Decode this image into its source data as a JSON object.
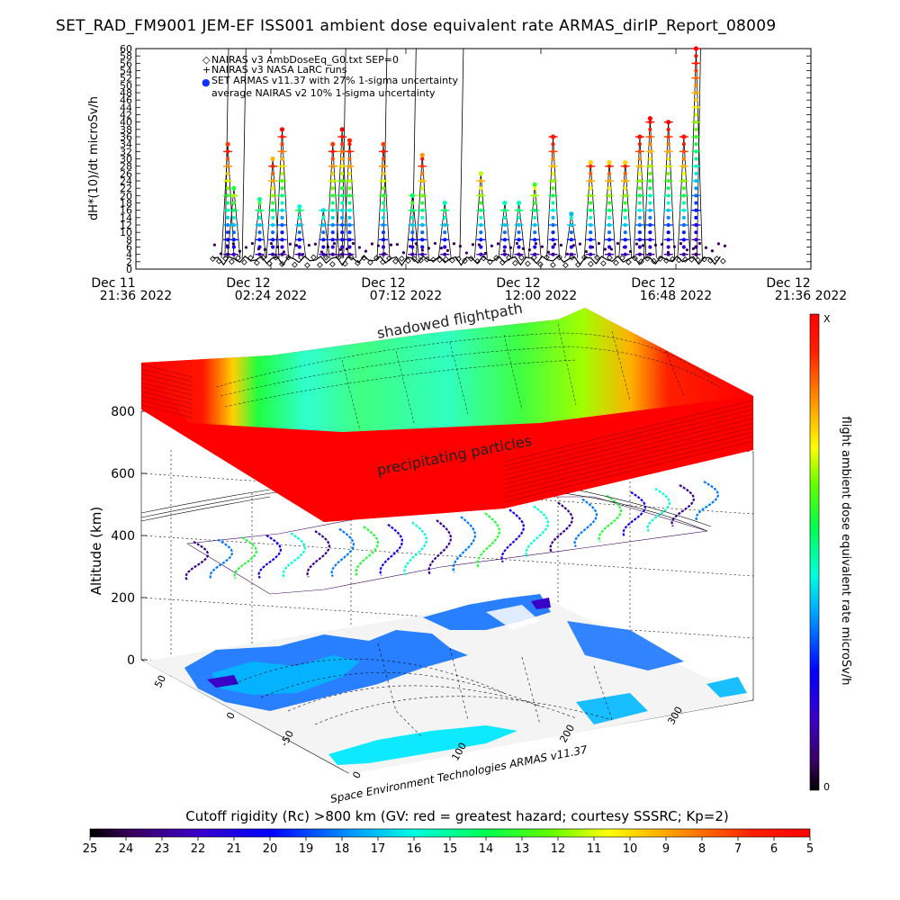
{
  "title": "SET_RAD_FM9001   JEM-EF ISS001 ambient dose equivalent rate ARMAS_dirIP_Report_08009",
  "chart_data": [
    {
      "type": "line",
      "ylabel": "dH*(10)/dt microSv/h",
      "ylim": [
        0,
        60
      ],
      "y_ticks": [
        0,
        2,
        4,
        6,
        8,
        10,
        12,
        14,
        16,
        18,
        20,
        22,
        24,
        26,
        28,
        30,
        32,
        34,
        36,
        38,
        40,
        42,
        44,
        46,
        48,
        50,
        52,
        54,
        56,
        58,
        60
      ],
      "x_ticks": [
        {
          "date": "Dec 11",
          "time": "21:36 2022"
        },
        {
          "date": "Dec 12",
          "time": "02:24 2022"
        },
        {
          "date": "Dec 12",
          "time": "07:12 2022"
        },
        {
          "date": "Dec 12",
          "time": "12:00 2022"
        },
        {
          "date": "Dec 12",
          "time": "16:48 2022"
        },
        {
          "date": "Dec 12",
          "time": "21:36 2022"
        }
      ],
      "xlim": [
        "2022-12-11 21:36",
        "2022-12-12 21:36"
      ],
      "legend_position": "top-left",
      "legend": [
        {
          "symbol": "◇",
          "label": "NAIRAS v3 AmbDoseEq_G0.txt SEP=0"
        },
        {
          "symbol": "+",
          "label": "NAIRAS v3 NASA LaRC runs"
        },
        {
          "symbol": "●",
          "label": "SET ARMAS v11.37 with 27% 1-sigma uncertainty"
        },
        {
          "symbol": "",
          "label": "average NAIRAS v2 10% 1-sigma uncertainty"
        }
      ],
      "series": [
        {
          "name": "SET ARMAS v11.37 with 27% 1-sigma uncertainty",
          "peaks": [
            {
              "t": "2022-12-12 00:52",
              "v": 34
            },
            {
              "t": "2022-12-12 01:05",
              "v": 22
            },
            {
              "t": "2022-12-12 02:00",
              "v": 19
            },
            {
              "t": "2022-12-12 02:28",
              "v": 30
            },
            {
              "t": "2022-12-12 02:48",
              "v": 38
            },
            {
              "t": "2022-12-12 03:25",
              "v": 17
            },
            {
              "t": "2022-12-12 04:16",
              "v": 16
            },
            {
              "t": "2022-12-12 04:36",
              "v": 34
            },
            {
              "t": "2022-12-12 04:56",
              "v": 38
            },
            {
              "t": "2022-12-12 05:12",
              "v": 35
            },
            {
              "t": "2022-12-12 06:24",
              "v": 34
            },
            {
              "t": "2022-12-12 07:26",
              "v": 20
            },
            {
              "t": "2022-12-12 07:47",
              "v": 31
            },
            {
              "t": "2022-12-12 08:35",
              "v": 18
            },
            {
              "t": "2022-12-12 09:52",
              "v": 26
            },
            {
              "t": "2022-12-12 10:43",
              "v": 18
            },
            {
              "t": "2022-12-12 11:13",
              "v": 18
            },
            {
              "t": "2022-12-12 11:47",
              "v": 23
            },
            {
              "t": "2022-12-12 12:26",
              "v": 36
            },
            {
              "t": "2022-12-12 13:05",
              "v": 15
            },
            {
              "t": "2022-12-12 13:46",
              "v": 29
            },
            {
              "t": "2022-12-12 14:26",
              "v": 29
            },
            {
              "t": "2022-12-12 15:00",
              "v": 29
            },
            {
              "t": "2022-12-12 15:31",
              "v": 36
            },
            {
              "t": "2022-12-12 15:53",
              "v": 41
            },
            {
              "t": "2022-12-12 16:32",
              "v": 40
            },
            {
              "t": "2022-12-12 17:05",
              "v": 36
            },
            {
              "t": "2022-12-12 17:31",
              "v": 60
            }
          ]
        },
        {
          "name": "NAIRAS v3 AmbDoseEq_G0.txt SEP=0",
          "spikes": [
            {
              "t": "2022-12-12 00:46",
              "v": 60
            },
            {
              "t": "2022-12-12 01:23",
              "v": 60
            },
            {
              "t": "2022-12-12 04:56",
              "v": 60
            },
            {
              "t": "2022-12-12 06:24",
              "v": 60
            },
            {
              "t": "2022-12-12 07:26",
              "v": 60
            },
            {
              "t": "2022-12-12 09:07",
              "v": 60
            },
            {
              "t": "2022-12-12 17:33",
              "v": 60
            }
          ]
        }
      ]
    },
    {
      "type": "heatmap",
      "zlabel": "Altitude (km)",
      "z_ticks": [
        0,
        200,
        400,
        600,
        800
      ],
      "lat_ticks": [
        50,
        0,
        -50
      ],
      "lon_ticks": [
        0,
        100,
        200,
        300
      ],
      "annotations": [
        "shadowed flightpath",
        "precipitating particles"
      ],
      "credit": "Space Environment Technologies ARMAS v11.37",
      "colorbar_label": "flight ambient dose equivalent rate microSv/h",
      "colorbar_top": "X",
      "colorbar_bottom": "0"
    },
    {
      "type": "heatmap",
      "title": "Cutoff rigidity (Rc) >800 km (GV: red = greatest hazard; courtesy SSSRC; Kp=2)",
      "colorbar_ticks": [
        25,
        24,
        23,
        22,
        21,
        20,
        19,
        18,
        17,
        16,
        15,
        14,
        13,
        12,
        11,
        10,
        9,
        8,
        7,
        6,
        5
      ],
      "colors": {
        "low_end": "#000000",
        "high_end": "#ff0000"
      }
    }
  ]
}
